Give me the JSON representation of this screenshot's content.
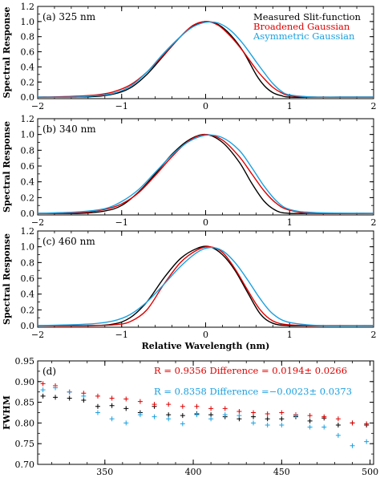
{
  "chart_data": [
    {
      "type": "line",
      "panel_label": "(a) 325 nm",
      "ylabel": "Spectral Response",
      "xlabel": "",
      "xlim": [
        -2,
        2
      ],
      "ylim": [
        -0.02,
        1.2
      ],
      "xticks": [
        "-2",
        "-1",
        "0",
        "1",
        "2"
      ],
      "yticks": [
        "0.0",
        "0.2",
        "0.4",
        "0.6",
        "0.8",
        "1.0",
        "1.2"
      ],
      "legend": [
        "Measured Slit-function",
        "Broadened Gaussian",
        "Asymmetric Gaussian"
      ],
      "legend_position": "top-right",
      "series": [
        {
          "name": "Measured Slit-function",
          "color": "#000000",
          "x": [
            -2.0,
            -1.6,
            -1.3,
            -1.1,
            -0.9,
            -0.7,
            -0.5,
            -0.3,
            -0.15,
            0.0,
            0.15,
            0.3,
            0.45,
            0.6,
            0.7,
            0.8,
            0.9,
            1.0,
            1.3,
            1.6,
            2.0
          ],
          "y": [
            0.0,
            0.0,
            0.01,
            0.04,
            0.12,
            0.3,
            0.55,
            0.8,
            0.94,
            1.0,
            0.96,
            0.82,
            0.6,
            0.3,
            0.15,
            0.06,
            0.02,
            0.0,
            0.0,
            0.0,
            0.0
          ]
        },
        {
          "name": "Broadened Gaussian",
          "color": "#e00000",
          "x": [
            -2.0,
            -1.6,
            -1.3,
            -1.1,
            -0.9,
            -0.7,
            -0.5,
            -0.3,
            -0.15,
            0.0,
            0.15,
            0.3,
            0.45,
            0.6,
            0.7,
            0.8,
            0.9,
            1.0,
            1.3,
            1.6,
            2.0
          ],
          "y": [
            0.0,
            0.01,
            0.03,
            0.07,
            0.16,
            0.33,
            0.56,
            0.8,
            0.95,
            1.0,
            0.95,
            0.8,
            0.6,
            0.37,
            0.24,
            0.13,
            0.06,
            0.02,
            0.0,
            0.0,
            0.0
          ]
        },
        {
          "name": "Asymmetric Gaussian",
          "color": "#1aa0e0",
          "x": [
            -2.0,
            -1.6,
            -1.3,
            -1.1,
            -0.9,
            -0.7,
            -0.5,
            -0.3,
            -0.15,
            0.0,
            0.15,
            0.3,
            0.45,
            0.6,
            0.7,
            0.8,
            0.9,
            1.0,
            1.3,
            1.6,
            2.0
          ],
          "y": [
            0.0,
            0.0,
            0.02,
            0.05,
            0.14,
            0.33,
            0.58,
            0.8,
            0.93,
            0.99,
            0.98,
            0.88,
            0.7,
            0.47,
            0.32,
            0.18,
            0.08,
            0.03,
            0.0,
            0.0,
            0.0
          ]
        }
      ]
    },
    {
      "type": "line",
      "panel_label": "(b) 340 nm",
      "ylabel": "Spectral Response",
      "xlabel": "",
      "xlim": [
        -2,
        2
      ],
      "ylim": [
        -0.02,
        1.2
      ],
      "xticks": [
        "-2",
        "-1",
        "0",
        "1",
        "2"
      ],
      "yticks": [
        "0.0",
        "0.2",
        "0.4",
        "0.6",
        "0.8",
        "1.0",
        "1.2"
      ],
      "series": [
        {
          "name": "Measured Slit-function",
          "color": "#000000",
          "x": [
            -2.0,
            -1.5,
            -1.2,
            -1.0,
            -0.8,
            -0.6,
            -0.4,
            -0.2,
            0.0,
            0.2,
            0.4,
            0.55,
            0.7,
            0.85,
            1.0,
            1.3,
            2.0
          ],
          "y": [
            0.0,
            0.0,
            0.03,
            0.1,
            0.27,
            0.5,
            0.75,
            0.93,
            1.0,
            0.9,
            0.65,
            0.38,
            0.15,
            0.03,
            0.0,
            0.0,
            0.0
          ]
        },
        {
          "name": "Broadened Gaussian",
          "color": "#e00000",
          "x": [
            -2.0,
            -1.5,
            -1.2,
            -1.0,
            -0.8,
            -0.6,
            -0.4,
            -0.2,
            0.0,
            0.2,
            0.4,
            0.55,
            0.7,
            0.85,
            1.0,
            1.3,
            2.0
          ],
          "y": [
            0.0,
            0.01,
            0.05,
            0.12,
            0.26,
            0.48,
            0.72,
            0.92,
            1.0,
            0.93,
            0.72,
            0.5,
            0.28,
            0.12,
            0.04,
            0.0,
            0.0
          ]
        },
        {
          "name": "Asymmetric Gaussian",
          "color": "#1aa0e0",
          "x": [
            -2.0,
            -1.5,
            -1.2,
            -1.0,
            -0.8,
            -0.6,
            -0.4,
            -0.2,
            0.0,
            0.2,
            0.4,
            0.55,
            0.7,
            0.85,
            1.0,
            1.3,
            2.0
          ],
          "y": [
            0.0,
            0.02,
            0.06,
            0.15,
            0.3,
            0.52,
            0.74,
            0.91,
            0.99,
            0.96,
            0.8,
            0.58,
            0.34,
            0.15,
            0.05,
            0.01,
            0.0
          ]
        }
      ]
    },
    {
      "type": "line",
      "panel_label": "(c) 460 nm",
      "ylabel": "Spectral Response",
      "xlabel": "Relative Wavelength (nm)",
      "xlim": [
        -2,
        2
      ],
      "ylim": [
        -0.02,
        1.2
      ],
      "xticks": [
        "-2",
        "-1",
        "0",
        "1",
        "2"
      ],
      "yticks": [
        "0.0",
        "0.2",
        "0.4",
        "0.6",
        "0.8",
        "1.0",
        "1.2"
      ],
      "series": [
        {
          "name": "Measured Slit-function",
          "color": "#000000",
          "x": [
            -2.0,
            -1.4,
            -1.1,
            -0.9,
            -0.7,
            -0.5,
            -0.3,
            -0.1,
            0.05,
            0.2,
            0.35,
            0.5,
            0.65,
            0.8,
            1.0,
            1.4,
            2.0
          ],
          "y": [
            0.0,
            0.0,
            0.02,
            0.1,
            0.3,
            0.6,
            0.85,
            0.98,
            1.0,
            0.9,
            0.7,
            0.42,
            0.15,
            0.03,
            0.0,
            0.0,
            0.0
          ]
        },
        {
          "name": "Broadened Gaussian",
          "color": "#e00000",
          "x": [
            -2.0,
            -1.4,
            -1.1,
            -0.9,
            -0.7,
            -0.5,
            -0.3,
            -0.1,
            0.05,
            0.2,
            0.35,
            0.5,
            0.65,
            0.8,
            1.0,
            1.4,
            2.0
          ],
          "y": [
            0.0,
            0.0,
            0.01,
            0.05,
            0.2,
            0.52,
            0.8,
            0.96,
            1.0,
            0.93,
            0.72,
            0.45,
            0.2,
            0.06,
            0.01,
            0.0,
            0.0
          ]
        },
        {
          "name": "Asymmetric Gaussian",
          "color": "#1aa0e0",
          "x": [
            -2.0,
            -1.4,
            -1.1,
            -0.9,
            -0.7,
            -0.5,
            -0.3,
            -0.1,
            0.05,
            0.2,
            0.35,
            0.5,
            0.65,
            0.8,
            1.0,
            1.4,
            2.0
          ],
          "y": [
            0.0,
            0.02,
            0.06,
            0.14,
            0.3,
            0.52,
            0.75,
            0.93,
            0.99,
            0.95,
            0.8,
            0.58,
            0.34,
            0.15,
            0.04,
            0.0,
            0.0
          ]
        }
      ]
    },
    {
      "type": "scatter",
      "panel_label": "(d)",
      "ylabel": "FWHM",
      "xlabel": "Wavelength (nm)",
      "xlim": [
        312,
        502
      ],
      "ylim": [
        0.7,
        0.95
      ],
      "xticks": [
        "350",
        "400",
        "450",
        "500"
      ],
      "yticks": [
        "0.70",
        "0.75",
        "0.80",
        "0.85",
        "0.90",
        "0.95"
      ],
      "annotations": [
        {
          "text": "R = 0.9356     Difference = 0.0194± 0.0266",
          "color": "#e00000"
        },
        {
          "text": "R = 0.8358     Difference =−0.0023± 0.0373",
          "color": "#1aa0e0"
        }
      ],
      "series": [
        {
          "name": "Measured Slit-function",
          "color": "#000000",
          "marker": "+",
          "x": [
            315,
            322,
            330,
            338,
            346,
            354,
            362,
            370,
            378,
            386,
            394,
            402,
            410,
            418,
            426,
            434,
            442,
            450,
            458,
            466,
            474,
            482,
            490,
            498
          ],
          "y": [
            0.865,
            0.862,
            0.86,
            0.855,
            0.84,
            0.842,
            0.835,
            0.825,
            0.84,
            0.82,
            0.818,
            0.822,
            0.82,
            0.815,
            0.81,
            0.815,
            0.81,
            0.81,
            0.815,
            0.805,
            0.812,
            0.795,
            0.8,
            0.795
          ]
        },
        {
          "name": "Broadened Gaussian",
          "color": "#e00000",
          "marker": "+",
          "x": [
            315,
            322,
            330,
            338,
            346,
            354,
            362,
            370,
            378,
            386,
            394,
            402,
            410,
            418,
            426,
            434,
            442,
            450,
            458,
            466,
            474,
            482,
            490,
            498
          ],
          "y": [
            0.895,
            0.89,
            0.875,
            0.872,
            0.865,
            0.86,
            0.858,
            0.852,
            0.845,
            0.845,
            0.84,
            0.84,
            0.835,
            0.835,
            0.828,
            0.825,
            0.822,
            0.825,
            0.82,
            0.818,
            0.815,
            0.81,
            0.8,
            0.798
          ]
        },
        {
          "name": "Asymmetric Gaussian",
          "color": "#1aa0e0",
          "marker": "+",
          "x": [
            315,
            322,
            330,
            338,
            346,
            354,
            362,
            370,
            378,
            386,
            394,
            402,
            410,
            418,
            426,
            434,
            442,
            450,
            458,
            466,
            474,
            482,
            490,
            498
          ],
          "y": [
            0.88,
            0.885,
            0.875,
            0.865,
            0.825,
            0.81,
            0.8,
            0.82,
            0.815,
            0.81,
            0.798,
            0.82,
            0.81,
            0.82,
            0.818,
            0.8,
            0.795,
            0.795,
            0.818,
            0.79,
            0.79,
            0.77,
            0.745,
            0.755
          ]
        }
      ]
    }
  ]
}
